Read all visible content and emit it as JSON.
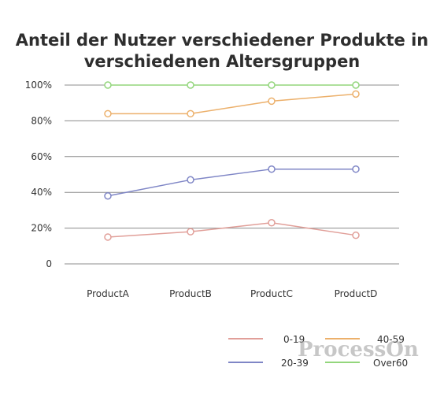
{
  "chart_data": {
    "type": "line",
    "title": "Anteil der Nutzer verschiedener Produkte in verschiedenen Altersgruppen",
    "categories": [
      "ProductA",
      "ProductB",
      "ProductC",
      "ProductD"
    ],
    "y_ticks": [
      "0",
      "20%",
      "40%",
      "60%",
      "80%",
      "100%"
    ],
    "ylim": [
      0,
      100
    ],
    "grid": true,
    "legend": "bottom-right",
    "series": [
      {
        "name": "0-19",
        "color": "#e19f99",
        "values": [
          15,
          18,
          23,
          16
        ]
      },
      {
        "name": "20-39",
        "color": "#7f86c6",
        "values": [
          38,
          47,
          53,
          53
        ]
      },
      {
        "name": "40-59",
        "color": "#ecb06b",
        "values": [
          84,
          84,
          91,
          95
        ]
      },
      {
        "name": "Over60",
        "color": "#93d67c",
        "values": [
          100,
          100,
          100,
          100
        ]
      }
    ]
  },
  "watermark": "ProcessOn"
}
